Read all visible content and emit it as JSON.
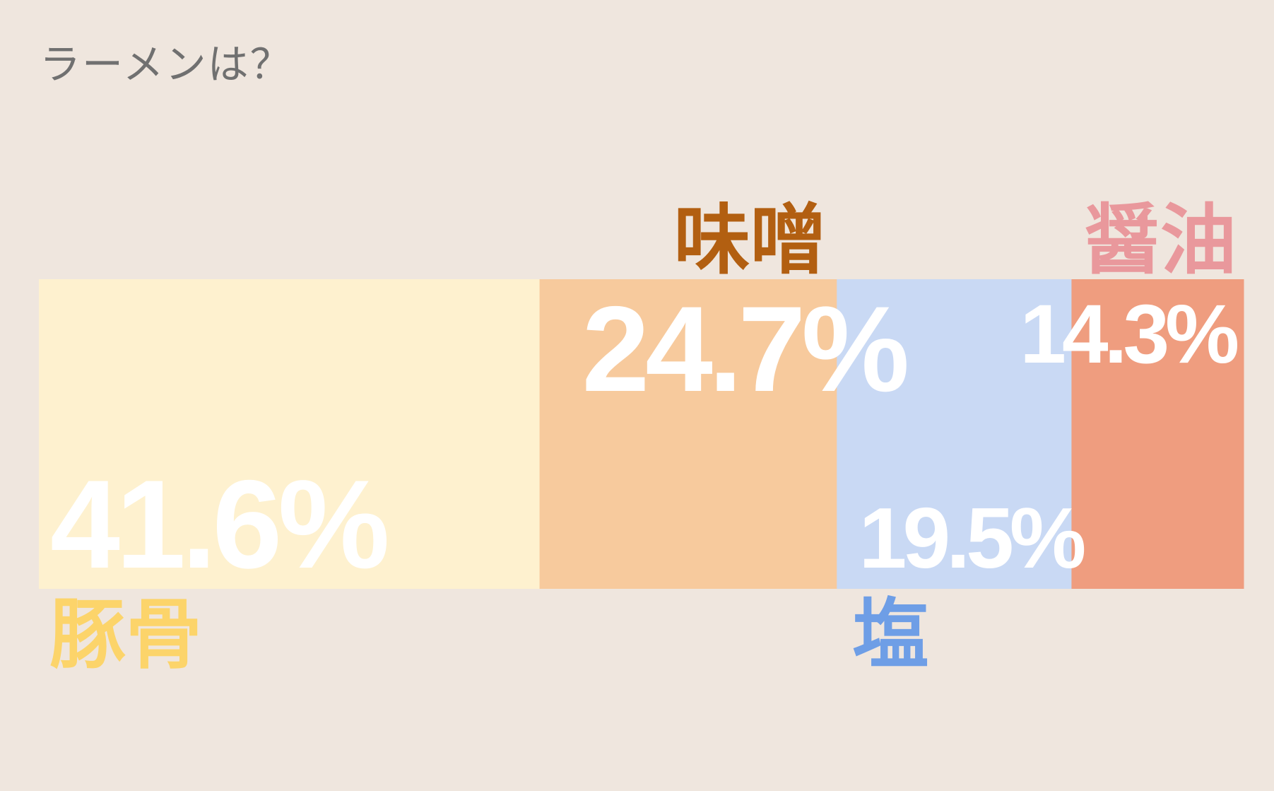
{
  "chart_data": {
    "type": "bar",
    "stacked": true,
    "orientation": "horizontal",
    "title": "ラーメンは？",
    "unit": "%",
    "categories": [
      "豚骨",
      "味噌",
      "塩",
      "醤油"
    ],
    "values": [
      41.6,
      24.7,
      19.5,
      14.3
    ],
    "labels": [
      "41.6%",
      "24.7%",
      "19.5%",
      "14.3%"
    ],
    "segment_colors": [
      "#fef1cf",
      "#f7ca9d",
      "#c9d9f4",
      "#ef9d7f"
    ],
    "label_colors": [
      "#fcd46a",
      "#b25f11",
      "#6e9ee6",
      "#e9989c"
    ],
    "category_label_side": [
      "below",
      "above",
      "below",
      "above"
    ],
    "percent_label_side": [
      "bottom",
      "top",
      "bottom",
      "top"
    ]
  }
}
